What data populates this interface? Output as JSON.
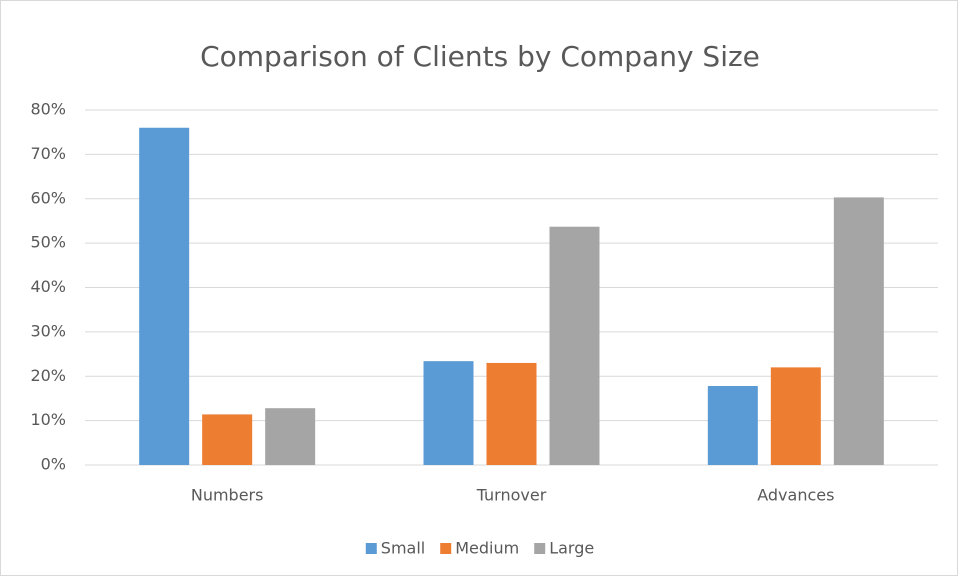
{
  "chart_data": {
    "type": "bar",
    "title": "Comparison of Clients by Company Size",
    "categories": [
      "Numbers",
      "Turnover",
      "Advances"
    ],
    "series": [
      {
        "name": "Small",
        "color": "#5b9bd5",
        "values": [
          76,
          23.4,
          17.8
        ]
      },
      {
        "name": "Medium",
        "color": "#ed7d31",
        "values": [
          11.4,
          23,
          22
        ]
      },
      {
        "name": "Large",
        "color": "#a5a5a5",
        "values": [
          12.8,
          53.7,
          60.3
        ]
      }
    ],
    "ylim": [
      0,
      80
    ],
    "yticks": [
      {
        "value": 0,
        "label": "0%"
      },
      {
        "value": 10,
        "label": "10%"
      },
      {
        "value": 20,
        "label": "20%"
      },
      {
        "value": 30,
        "label": "30%"
      },
      {
        "value": 40,
        "label": "40%"
      },
      {
        "value": 50,
        "label": "50%"
      },
      {
        "value": 60,
        "label": "60%"
      },
      {
        "value": 70,
        "label": "70%"
      },
      {
        "value": 80,
        "label": "80%"
      }
    ],
    "grid": true,
    "legend": "bottom"
  }
}
